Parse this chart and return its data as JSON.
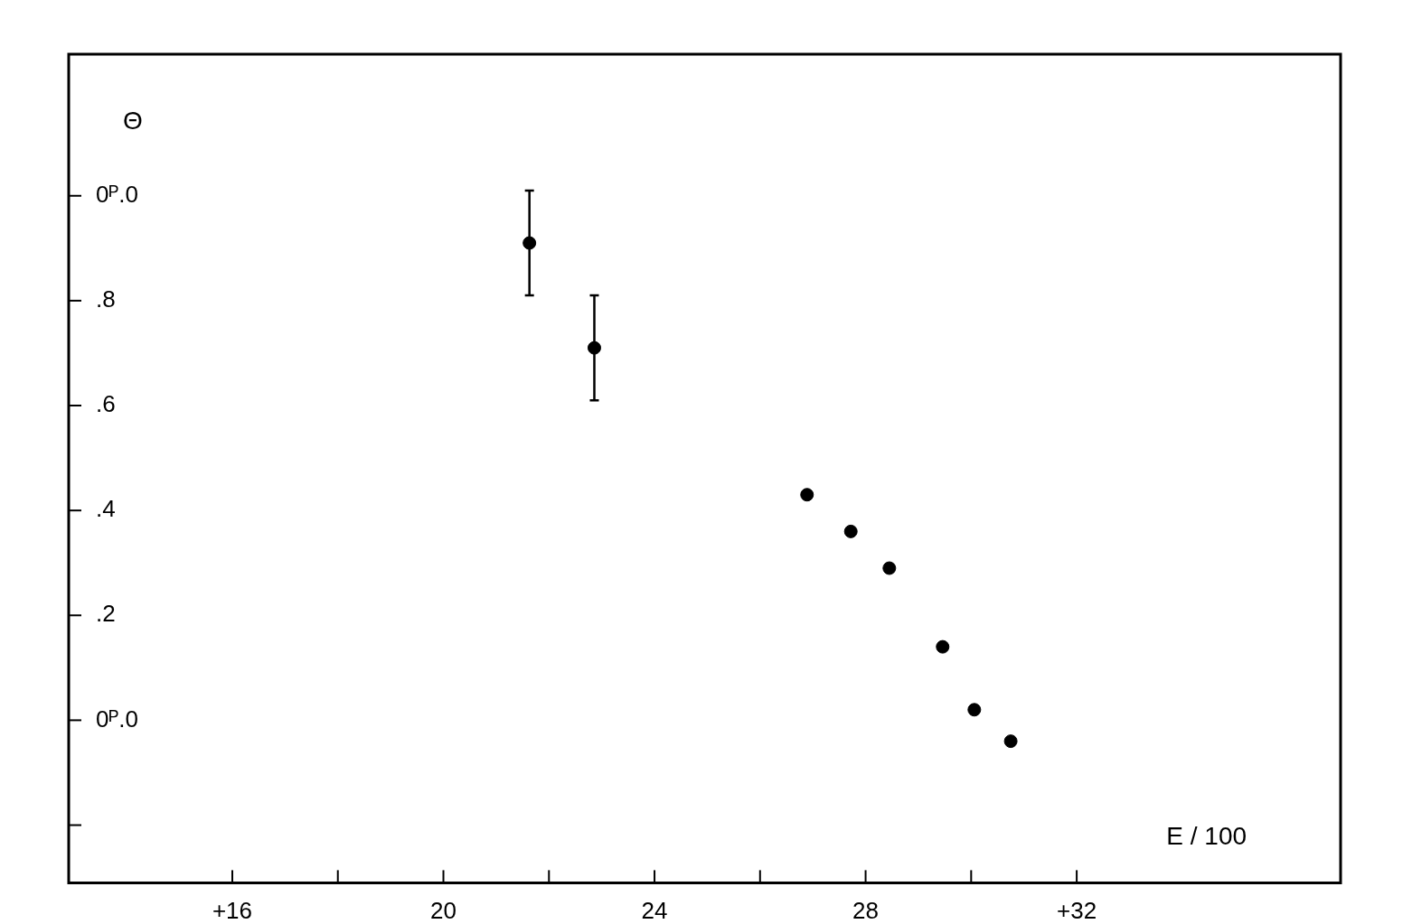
{
  "chart_data": {
    "type": "scatter",
    "xlabel": "E / 100",
    "ylabel": "Θ",
    "x": [
      21.63,
      22.86,
      26.89,
      27.72,
      28.45,
      29.46,
      30.06,
      30.75
    ],
    "series": [
      {
        "color": "#000000",
        "values": [
          0.91,
          0.71,
          0.43,
          0.36,
          0.29,
          0.14,
          0.02,
          -0.04
        ],
        "errors": [
          0.1,
          0.1,
          null,
          null,
          null,
          null,
          null,
          null
        ]
      }
    ],
    "xlim": [
      12.9,
      37.0
    ],
    "ylim": [
      -0.31,
      1.27
    ],
    "xticks": [
      {
        "value": 16,
        "label": "+16"
      },
      {
        "value": 18,
        "label": null
      },
      20,
      {
        "value": 22,
        "label": null
      },
      24,
      {
        "value": 26,
        "label": null
      },
      28,
      {
        "value": 30,
        "label": null
      },
      {
        "value": 32,
        "label": "+32"
      }
    ],
    "yticks": [
      {
        "value": -0.2,
        "label": null
      },
      {
        "value": 0,
        "label": "0ᴾ.0"
      },
      {
        "value": 0.2,
        "label": ".2"
      },
      {
        "value": 0.4,
        "label": ".4"
      },
      {
        "value": 0.6,
        "label": ".6"
      },
      {
        "value": 0.8,
        "label": ".8"
      },
      {
        "value": 1.0,
        "label": "0ᴾ.0"
      }
    ],
    "grid": false,
    "legend": false,
    "marker": "circle"
  }
}
